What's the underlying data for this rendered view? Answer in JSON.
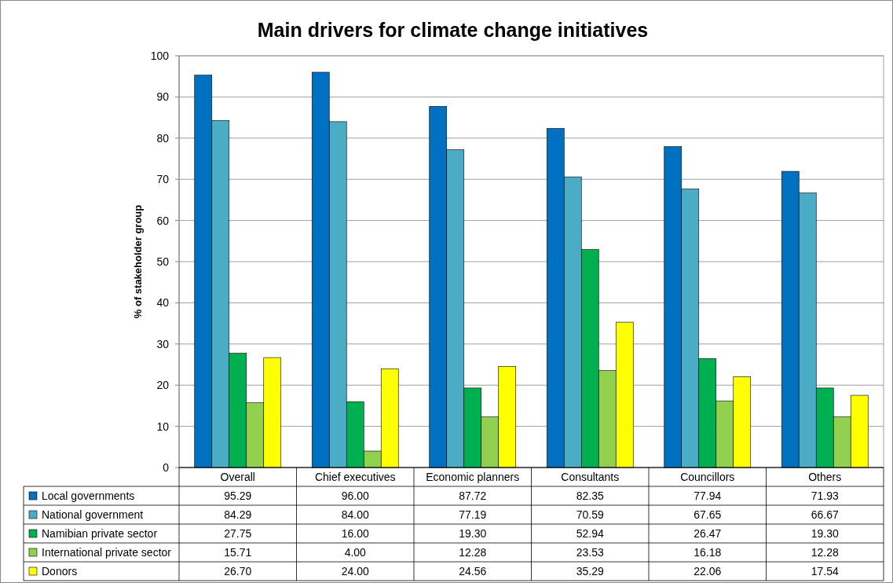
{
  "chart_data": {
    "type": "bar",
    "title": "Main drivers for climate change initiatives",
    "ylabel": "% of stakeholder group",
    "categories": [
      "Overall",
      "Chief executives",
      "Economic planners",
      "Consultants",
      "Councillors",
      "Others"
    ],
    "ylim": [
      0,
      100
    ],
    "yticks": [
      0,
      10,
      20,
      30,
      40,
      50,
      60,
      70,
      80,
      90,
      100
    ],
    "grid": "y",
    "legend": "bottom",
    "series": [
      {
        "name": "Local governments",
        "color": "#0070c0",
        "values": [
          95.29,
          96.0,
          87.72,
          82.35,
          77.94,
          71.93
        ],
        "value_labels": [
          "95.29",
          "96.00",
          "87.72",
          "82.35",
          "77.94",
          "71.93"
        ]
      },
      {
        "name": "National government",
        "color": "#4bacc6",
        "values": [
          84.29,
          84.0,
          77.19,
          70.59,
          67.65,
          66.67
        ],
        "value_labels": [
          "84.29",
          "84.00",
          "77.19",
          "70.59",
          "67.65",
          "66.67"
        ]
      },
      {
        "name": "Namibian private sector",
        "color": "#00b050",
        "values": [
          27.75,
          16.0,
          19.3,
          52.94,
          26.47,
          19.3
        ],
        "value_labels": [
          "27.75",
          "16.00",
          "19.30",
          "52.94",
          "26.47",
          "19.30"
        ]
      },
      {
        "name": "International private sector",
        "color": "#92d050",
        "values": [
          15.71,
          4.0,
          12.28,
          23.53,
          16.18,
          12.28
        ],
        "value_labels": [
          "15.71",
          "4.00",
          "12.28",
          "23.53",
          "16.18",
          "12.28"
        ]
      },
      {
        "name": "Donors",
        "color": "#ffff00",
        "values": [
          26.7,
          24.0,
          24.56,
          35.29,
          22.06,
          17.54
        ],
        "value_labels": [
          "26.70",
          "24.00",
          "24.56",
          "35.29",
          "22.06",
          "17.54"
        ]
      }
    ]
  }
}
